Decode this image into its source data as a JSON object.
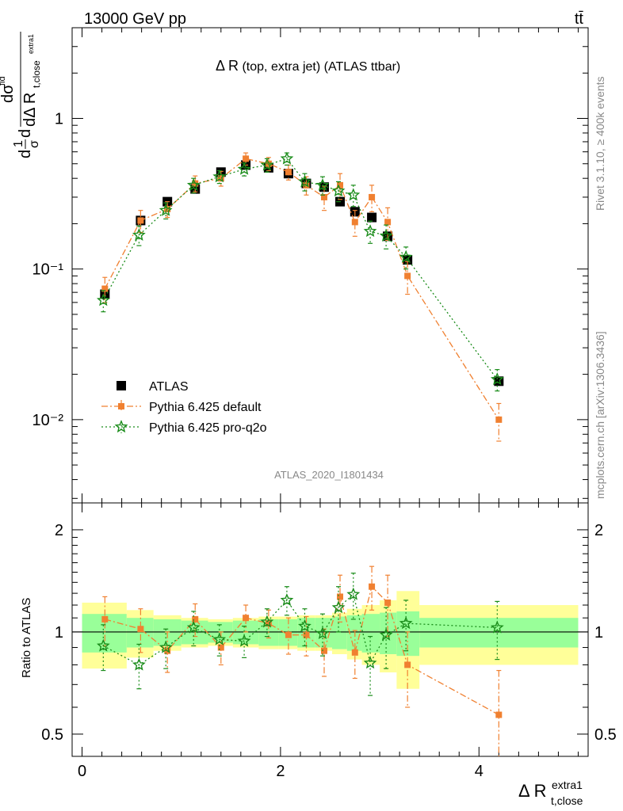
{
  "header": {
    "left": "13000 GeV pp",
    "right": "tt̄"
  },
  "upper_ylabel": {
    "main": "d",
    "frac1_num": "1",
    "frac1_den": "σ",
    "d2": "d",
    "frac2_num": "dσ",
    "frac2_num_sup": "fid",
    "frac2_den": "dΔ R",
    "frac2_den_sub": "t,close",
    "frac2_den_subsup": "extra1"
  },
  "plot_title": {
    "main": "Δ R",
    "rest": " (top, extra jet) (ATLAS ttbar)"
  },
  "side_labels": {
    "rivet": "Rivet 3.1.10, ≥ 400k events",
    "mcplots": "mcplots.cern.ch [arXiv:1306.3436]"
  },
  "analysis_id": "ATLAS_2020_I1801434",
  "ratio_ylabel": "Ratio to ATLAS",
  "xlabel": {
    "main": "Δ R",
    "sub": "t,close",
    "sup": "extra1"
  },
  "legend": [
    {
      "label": "ATLAS",
      "color": "#000000",
      "marker": "square"
    },
    {
      "label": "Pythia 6.425 default",
      "color": "#f08030",
      "marker": "square-small"
    },
    {
      "label": "Pythia 6.425 pro-q2o",
      "color": "#1a8c1a",
      "marker": "star"
    }
  ],
  "colors": {
    "atlas": "#000000",
    "default": "#f08030",
    "proq2o": "#1a8c1a",
    "band_inner": "#99ff99",
    "band_outer": "#ffff99"
  },
  "chart_data": {
    "type": "scatter",
    "x_ticks": [
      "0",
      "2",
      "4"
    ],
    "upper": {
      "yscale": "log",
      "ylim": [
        0.0028,
        4.0
      ],
      "y_ticks": [
        {
          "value": 1,
          "label": "1"
        },
        {
          "value": 0.1,
          "label": "10⁻¹"
        },
        {
          "value": 0.01,
          "label": "10⁻²"
        }
      ]
    },
    "lower": {
      "yscale": "log",
      "ylim": [
        0.43,
        2.4
      ],
      "y_ticks": [
        {
          "value": 2,
          "label": "2"
        },
        {
          "value": 1,
          "label": "1"
        },
        {
          "value": 0.5,
          "label": "0.5"
        }
      ]
    },
    "xlim": [
      -0.1,
      5.1
    ],
    "bins": [
      [
        0.0,
        0.45
      ],
      [
        0.45,
        0.72
      ],
      [
        0.72,
        1.0
      ],
      [
        1.0,
        1.27
      ],
      [
        1.27,
        1.52
      ],
      [
        1.52,
        1.78
      ],
      [
        1.78,
        1.98
      ],
      [
        1.98,
        2.17
      ],
      [
        2.17,
        2.35
      ],
      [
        2.35,
        2.52
      ],
      [
        2.52,
        2.67
      ],
      [
        2.67,
        2.82
      ],
      [
        2.82,
        3.0
      ],
      [
        3.0,
        3.17
      ],
      [
        3.17,
        3.4
      ],
      [
        3.4,
        5.0
      ]
    ],
    "x": [
      0.23,
      0.59,
      0.86,
      1.14,
      1.4,
      1.65,
      1.88,
      2.08,
      2.26,
      2.44,
      2.6,
      2.75,
      2.92,
      3.08,
      3.28,
      4.2
    ],
    "atlas": [
      0.068,
      0.21,
      0.28,
      0.34,
      0.44,
      0.49,
      0.47,
      0.43,
      0.37,
      0.35,
      0.28,
      0.24,
      0.22,
      0.165,
      0.115,
      0.018
    ],
    "band_inner": [
      0.13,
      0.1,
      0.09,
      0.08,
      0.07,
      0.08,
      0.09,
      0.09,
      0.1,
      0.1,
      0.11,
      0.12,
      0.13,
      0.14,
      0.15,
      0.1
    ],
    "band_outer": [
      0.22,
      0.16,
      0.12,
      0.1,
      0.09,
      0.1,
      0.11,
      0.11,
      0.12,
      0.12,
      0.14,
      0.17,
      0.2,
      0.24,
      0.32,
      0.2
    ],
    "series": [
      {
        "name": "Pythia 6.425 default",
        "values": [
          0.074,
          0.21,
          0.25,
          0.37,
          0.4,
          0.54,
          0.5,
          0.44,
          0.36,
          0.3,
          0.36,
          0.205,
          0.3,
          0.205,
          0.09,
          0.01
        ],
        "errors": [
          0.014,
          0.035,
          0.03,
          0.045,
          0.045,
          0.05,
          0.05,
          0.05,
          0.05,
          0.055,
          0.07,
          0.04,
          0.06,
          0.05,
          0.022,
          0.0028
        ],
        "ratio": [
          1.09,
          1.02,
          0.88,
          1.09,
          0.9,
          1.1,
          1.06,
          0.98,
          0.98,
          0.88,
          1.27,
          0.87,
          1.36,
          1.22,
          0.8,
          0.57
        ],
        "ratio_errors": [
          0.18,
          0.15,
          0.12,
          0.12,
          0.1,
          0.1,
          0.1,
          0.12,
          0.13,
          0.14,
          0.2,
          0.14,
          0.2,
          0.25,
          0.2,
          0.2
        ]
      },
      {
        "name": "Pythia 6.425 pro-q2o",
        "values": [
          0.062,
          0.168,
          0.245,
          0.36,
          0.41,
          0.46,
          0.49,
          0.54,
          0.38,
          0.36,
          0.33,
          0.31,
          0.178,
          0.166,
          0.12,
          0.0185
        ],
        "errors": [
          0.01,
          0.025,
          0.03,
          0.04,
          0.04,
          0.045,
          0.05,
          0.05,
          0.05,
          0.05,
          0.05,
          0.05,
          0.03,
          0.03,
          0.02,
          0.003
        ],
        "ratio": [
          0.91,
          0.8,
          0.9,
          1.03,
          0.95,
          0.94,
          1.07,
          1.24,
          1.04,
          0.99,
          1.18,
          1.29,
          0.81,
          0.98,
          1.06,
          1.03
        ],
        "ratio_errors": [
          0.14,
          0.12,
          0.12,
          0.12,
          0.1,
          0.1,
          0.1,
          0.12,
          0.13,
          0.14,
          0.18,
          0.2,
          0.16,
          0.2,
          0.18,
          0.2
        ]
      }
    ]
  }
}
